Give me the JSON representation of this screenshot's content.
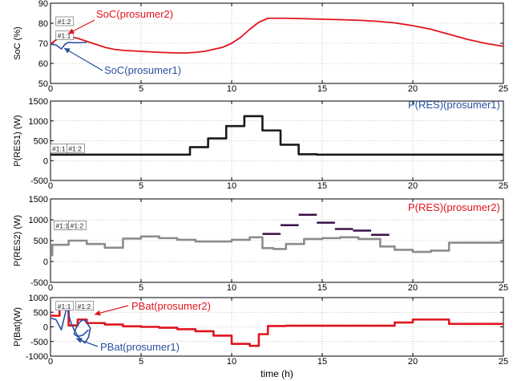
{
  "chart_data": [
    {
      "type": "line",
      "ylabel": "SoC (%)",
      "xlim": [
        0,
        25
      ],
      "ylim": [
        50,
        90
      ],
      "xticks": [
        0,
        5,
        10,
        15,
        20,
        25
      ],
      "yticks": [
        50,
        60,
        70,
        80,
        90
      ],
      "grid": true,
      "series": [
        {
          "name": "SoC(prosumer2)",
          "color": "#e0141e",
          "x": [
            0,
            0.2,
            0.5,
            0.7,
            1,
            1.5,
            2,
            2.5,
            3,
            3.5,
            4,
            5,
            6,
            7,
            7.5,
            8,
            8.5,
            9,
            9.5,
            10,
            10.5,
            11,
            11.5,
            12,
            13,
            14,
            15,
            16,
            17,
            18,
            19,
            20,
            21,
            22,
            23,
            24,
            25
          ],
          "y": [
            69.5,
            71,
            73,
            74,
            73.5,
            72.5,
            71,
            69.5,
            68,
            67,
            66.5,
            66,
            65.5,
            65.2,
            65.2,
            65.5,
            66,
            67,
            68,
            70,
            73,
            77,
            80.5,
            82.5,
            82.5,
            82.3,
            82,
            81.8,
            81.5,
            81,
            80.2,
            78.8,
            77,
            74.5,
            72,
            70,
            68.5
          ]
        },
        {
          "name": "SoC(prosumer1)",
          "color": "#2850a0",
          "x": [
            0,
            0.3,
            0.6,
            0.8,
            1,
            1.3,
            1.6,
            2
          ],
          "y": [
            69.5,
            69.2,
            67.2,
            69.5,
            70.5,
            70.3,
            70.3,
            70.5
          ]
        }
      ],
      "annotations": [
        "#1:2",
        "#1:1"
      ]
    },
    {
      "type": "line",
      "ylabel": "P(RES1) (W)",
      "xlim": [
        0,
        25
      ],
      "ylim": [
        -500,
        1500
      ],
      "xticks": [
        0,
        5,
        10,
        15,
        20,
        25
      ],
      "yticks": [
        -500,
        0,
        500,
        1000,
        1500
      ],
      "grid": true,
      "series": [
        {
          "name": "P(RES)(prosumer1)",
          "color": "#1a1a1a",
          "step": true,
          "x": [
            0,
            7.7,
            8.7,
            9.7,
            10.7,
            11.7,
            12.7,
            13.7,
            14.7,
            25
          ],
          "y": [
            150,
            340,
            560,
            870,
            1120,
            760,
            400,
            160,
            150,
            150
          ]
        }
      ],
      "annotations": [
        "#1:1",
        "#1:2"
      ]
    },
    {
      "type": "line",
      "ylabel": "P(RES2) (W)",
      "xlim": [
        0,
        25
      ],
      "ylim": [
        -500,
        1500
      ],
      "xticks": [
        0,
        5,
        10,
        15,
        20,
        25
      ],
      "yticks": [
        -500,
        0,
        500,
        1000,
        1500
      ],
      "grid": true,
      "series": [
        {
          "name": "P(RES)(prosumer2)",
          "color": "#8c8c8c",
          "step": true,
          "x": [
            0,
            0.1,
            1,
            2,
            3,
            4,
            5,
            6,
            7,
            8,
            9,
            10,
            11,
            11.7,
            12.3,
            13,
            14,
            15,
            16,
            17,
            18.2,
            19,
            20,
            21,
            22,
            25
          ],
          "y": [
            150,
            400,
            500,
            420,
            330,
            550,
            600,
            560,
            520,
            480,
            480,
            520,
            580,
            320,
            300,
            420,
            540,
            560,
            580,
            540,
            360,
            280,
            230,
            260,
            450,
            450
          ]
        },
        {
          "name": "",
          "color": "#3a1048",
          "segments": [
            {
              "x": [
                11.7,
                12.7
              ],
              "y": 660
            },
            {
              "x": [
                12.7,
                13.7
              ],
              "y": 870
            },
            {
              "x": [
                13.7,
                14.7
              ],
              "y": 1120
            },
            {
              "x": [
                14.7,
                15.7
              ],
              "y": 930
            },
            {
              "x": [
                15.7,
                16.7
              ],
              "y": 780
            },
            {
              "x": [
                16.7,
                17.7
              ],
              "y": 740
            },
            {
              "x": [
                17.7,
                18.7
              ],
              "y": 640
            }
          ]
        }
      ],
      "annotations": [
        "#1:1",
        "#1:2"
      ]
    },
    {
      "type": "line",
      "ylabel": "P(Bat)(W)",
      "xlabel": "time  (h)",
      "xlim": [
        0,
        25
      ],
      "ylim": [
        -1000,
        1000
      ],
      "xticks": [
        0,
        5,
        10,
        15,
        20,
        25
      ],
      "yticks": [
        -1000,
        -500,
        0,
        500,
        1000
      ],
      "grid": true,
      "series": [
        {
          "name": "PBat(prosumer2)",
          "color": "#e0141e",
          "step": true,
          "x": [
            0,
            0.5,
            1,
            1.5,
            2,
            3,
            4,
            5,
            6,
            7,
            8,
            9,
            10,
            11,
            11.5,
            12,
            13,
            14,
            15,
            16,
            17,
            18,
            19,
            20,
            21,
            22,
            25
          ],
          "y": [
            380,
            650,
            50,
            250,
            130,
            80,
            20,
            0,
            -30,
            -80,
            -150,
            -300,
            -580,
            -650,
            -250,
            30,
            40,
            40,
            40,
            40,
            40,
            40,
            150,
            250,
            250,
            100,
            100
          ]
        },
        {
          "name": "PBat(prosumer1)",
          "color": "#2850a0",
          "x": [
            0,
            0.3,
            0.6,
            0.9,
            1.1,
            1.3,
            1.6,
            1.9,
            2.1,
            2.2,
            2.0,
            1.8,
            1.6,
            1.4,
            1.3,
            1.5,
            1.8,
            2.1
          ],
          "y": [
            300,
            250,
            -100,
            680,
            200,
            -100,
            -400,
            -550,
            -350,
            -50,
            150,
            250,
            150,
            -50,
            -250,
            -330,
            -280,
            -100
          ]
        }
      ],
      "annotations": [
        "#1:1",
        "#1:2"
      ]
    }
  ],
  "labels": {
    "soc_p2": "SoC(prosumer2)",
    "soc_p1": "SoC(prosumer1)",
    "res_p1": "P(RES)(prosumer1)",
    "res_p2": "P(RES)(prosumer2)",
    "pbat_p2": "PBat(prosumer2)",
    "pbat_p1": "PBat(prosumer1)"
  }
}
